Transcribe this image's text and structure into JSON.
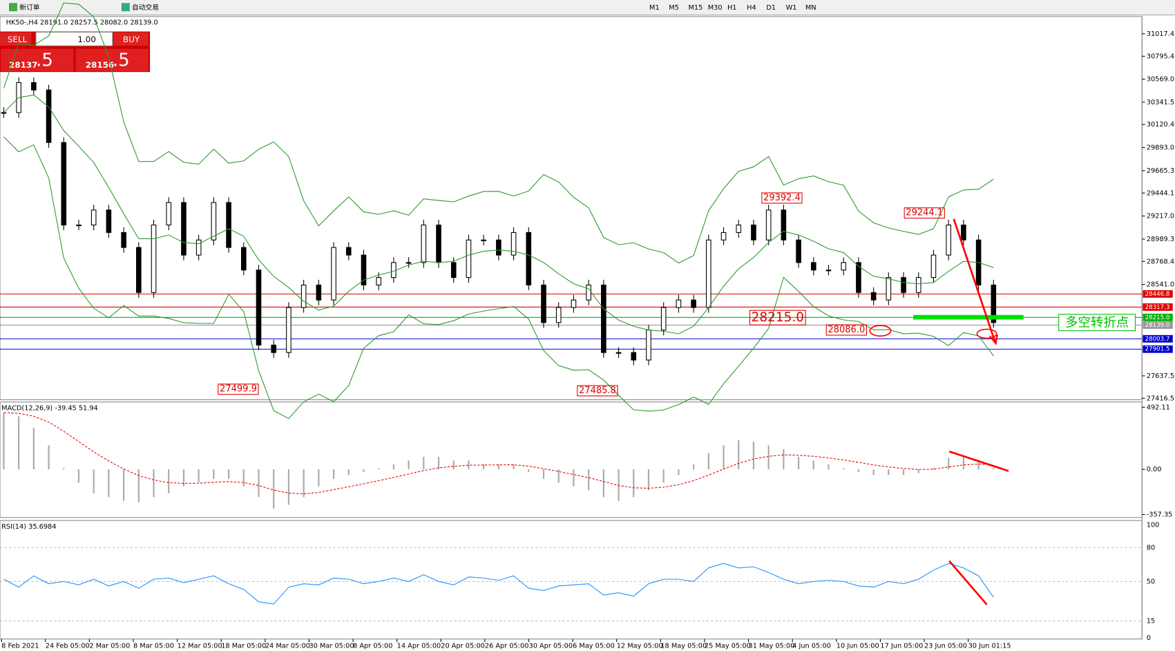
{
  "toolbar": {
    "buttons": [
      "新订单",
      "自动交易"
    ],
    "timeframes": [
      "M1",
      "M5",
      "M15",
      "M30",
      "H1",
      "H4",
      "D1",
      "W1",
      "MN"
    ]
  },
  "trade_panel": {
    "sell_label": "SELL",
    "lot": "1.00",
    "buy_label": "BUY",
    "sell_price": "28137",
    "sell_fraction": ".5",
    "buy_price": "28156",
    "buy_fraction": ".5"
  },
  "main_chart": {
    "symbol_info": "HK50-,H4  28191.0 28257.5 28082.0 28139.0",
    "price_ticks": [
      {
        "value": 31017.4,
        "label": "31017.4"
      },
      {
        "value": 30795.4,
        "label": "30795.4"
      },
      {
        "value": 30569.0,
        "label": "30569.0"
      },
      {
        "value": 30341.5,
        "label": "30341.5"
      },
      {
        "value": 30120.4,
        "label": "30120.4"
      },
      {
        "value": 29893.0,
        "label": "29893.0"
      },
      {
        "value": 29665.3,
        "label": "29665.3"
      },
      {
        "value": 29444.1,
        "label": "29444.1"
      },
      {
        "value": 29217.0,
        "label": "29217.0"
      },
      {
        "value": 28989.3,
        "label": "28989.3"
      },
      {
        "value": 28768.4,
        "label": "28768.4"
      },
      {
        "value": 28541.0,
        "label": "28541.0"
      },
      {
        "value": 27637.5,
        "label": "27637.5"
      },
      {
        "value": 27416.5,
        "label": "27416.5"
      }
    ],
    "levels": [
      {
        "value": 28446.8,
        "label": "28446.8",
        "color": "#e00000"
      },
      {
        "value": 28317.3,
        "label": "28317.3",
        "color": "#e00000"
      },
      {
        "value": 28215.0,
        "label": "28215.0",
        "color": "#00b000"
      },
      {
        "value": 28139.0,
        "label": "28139.0",
        "color": "#999999"
      },
      {
        "value": 28003.7,
        "label": "28003.7",
        "color": "#0000cc"
      },
      {
        "value": 27901.5,
        "label": "27901.5",
        "color": "#0000cc"
      }
    ],
    "annotations": [
      "29392.4",
      "29244.1",
      "28215.0",
      "28086.0",
      "27499.9",
      "27485.8"
    ],
    "note": "多空转折点",
    "closes": [
      30239,
      30535,
      30462,
      29943,
      29128,
      29128,
      29276,
      29054,
      28906,
      28461,
      29128,
      29350,
      28831,
      28980,
      29350,
      28906,
      28683,
      27942,
      27868,
      28313,
      28535,
      28387,
      28906,
      28831,
      28535,
      28609,
      28757,
      28757,
      29128,
      28757,
      28609,
      28980,
      28980,
      28831,
      29054,
      28535,
      28164,
      28313,
      28387,
      28535,
      27868,
      27868,
      27794,
      28090,
      28313,
      28387,
      28313,
      28980,
      29054,
      29128,
      28980,
      29276,
      28980,
      28757,
      28683,
      28683,
      28757,
      28461,
      28387,
      28609,
      28461,
      28609,
      28831,
      29128,
      28980,
      28535,
      28164
    ]
  },
  "macd": {
    "label": "MACD(12,26,9) -39.45 51.94",
    "ticks": [
      {
        "value": 492.11,
        "label": "492.11"
      },
      {
        "value": 0,
        "label": "0.00"
      },
      {
        "value": -357.35,
        "label": "-357.35"
      }
    ],
    "histogram": [
      450,
      420,
      330,
      190,
      10,
      -105,
      -190,
      -220,
      -250,
      -260,
      -220,
      -190,
      -135,
      -105,
      -75,
      -75,
      -135,
      -220,
      -310,
      -280,
      -220,
      -135,
      -75,
      -45,
      -20,
      10,
      40,
      70,
      100,
      100,
      70,
      70,
      40,
      40,
      40,
      -20,
      -75,
      -105,
      -135,
      -165,
      -220,
      -250,
      -220,
      -165,
      -105,
      -45,
      40,
      130,
      190,
      230,
      220,
      190,
      160,
      100,
      70,
      40,
      10,
      -20,
      -45,
      -45,
      -45,
      -30,
      10,
      90,
      100,
      70,
      10
    ]
  },
  "rsi": {
    "label": "RSI(14) 35.6984",
    "ticks": [
      100,
      80,
      50,
      15,
      0
    ],
    "values": [
      52,
      45,
      55,
      48,
      50,
      47,
      52,
      46,
      50,
      44,
      52,
      53,
      49,
      52,
      55,
      48,
      43,
      32,
      30,
      45,
      48,
      47,
      53,
      52,
      48,
      50,
      53,
      50,
      56,
      50,
      47,
      54,
      53,
      51,
      55,
      44,
      42,
      46,
      47,
      48,
      38,
      40,
      37,
      48,
      52,
      52,
      50,
      62,
      66,
      62,
      63,
      58,
      52,
      48,
      50,
      51,
      50,
      46,
      45,
      50,
      48,
      52,
      60,
      66,
      62,
      55,
      36
    ]
  },
  "x_axis": {
    "labels": [
      "8 Feb 2021",
      "24 Feb 05:00",
      "2 Mar 05:00",
      "8 Mar 05:00",
      "12 Mar 05:00",
      "18 Mar 05:00",
      "24 Mar 05:00",
      "30 Mar 05:00",
      "8 Apr 05:00",
      "14 Apr 05:00",
      "20 Apr 05:00",
      "26 Apr 05:00",
      "30 Apr 05:00",
      "6 May 05:00",
      "12 May 05:00",
      "18 May 05:00",
      "25 May 05:00",
      "31 May 05:00",
      "4 Jun 05:00",
      "10 Jun 05:00",
      "17 Jun 05:00",
      "23 Jun 05:00",
      "30 Jun 01:15"
    ]
  }
}
